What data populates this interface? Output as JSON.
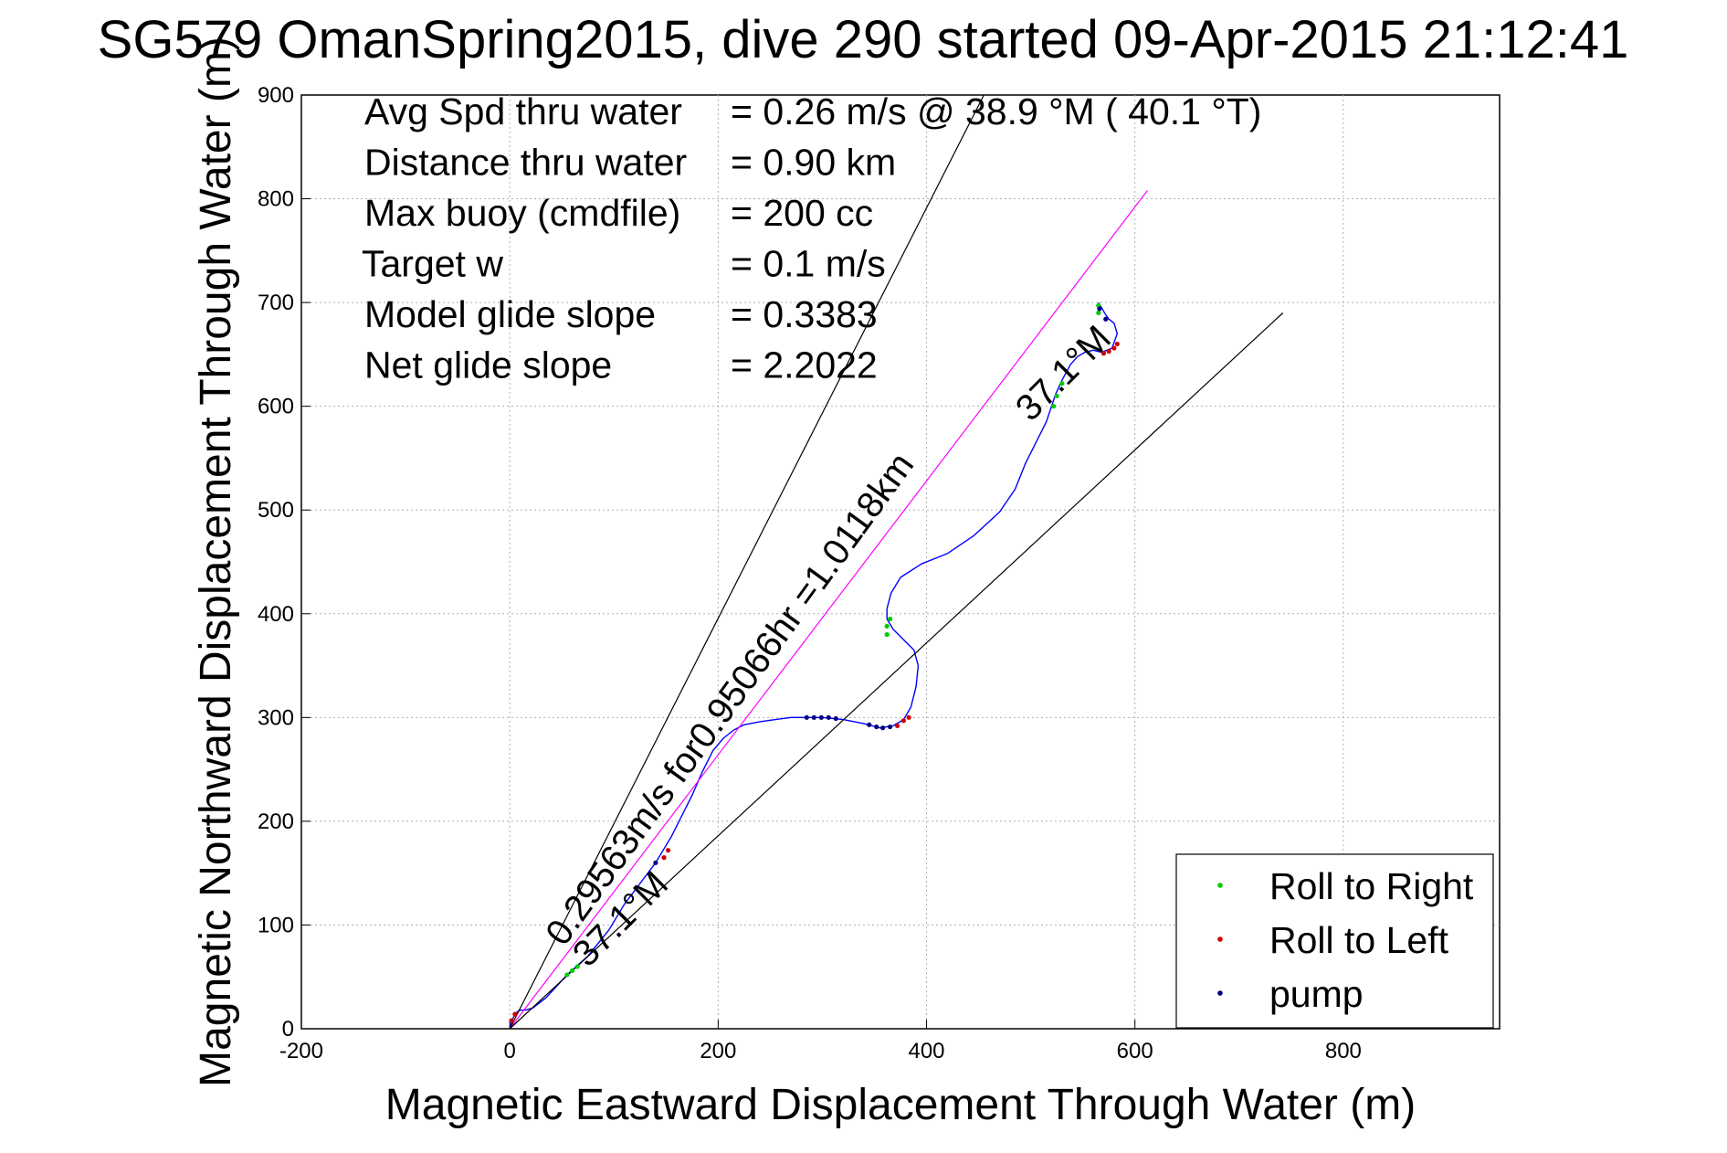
{
  "chart_data": {
    "type": "line",
    "title": "SG579 OmanSpring2015, dive 290 started 09-Apr-2015 21:12:41",
    "xlabel": "Magnetic Eastward Displacement Through Water (m)",
    "ylabel": "Magnetic Northward Displacement Through Water (m)",
    "xlim": [
      -200,
      950
    ],
    "ylim": [
      0,
      900
    ],
    "xticks": [
      -200,
      0,
      200,
      400,
      600,
      800
    ],
    "yticks": [
      0,
      100,
      200,
      300,
      400,
      500,
      600,
      700,
      800,
      900
    ],
    "grid": true,
    "legend_position": "bottom-right",
    "legend": [
      {
        "label": "Roll to Right",
        "color": "#00cc00"
      },
      {
        "label": "Roll to Left",
        "color": "#cc0000"
      },
      {
        "label": "pump",
        "color": "#000080"
      }
    ],
    "stats": [
      {
        "label": "Avg Spd thru water",
        "value": "=  0.26 m/s @   38.9 °M ( 40.1 °T)"
      },
      {
        "label": "Distance thru water",
        "value": "=  0.90 km"
      },
      {
        "label": "Max buoy (cmdfile)",
        "value": "= 200 cc"
      },
      {
        "label": "Target w",
        "value": "= 0.1 m/s"
      },
      {
        "label": "Model glide slope",
        "value": "= 0.3383"
      },
      {
        "label": "Net glide slope",
        "value": "= 2.2022"
      }
    ],
    "annotations": [
      {
        "text": "0.29563m/s for0.95066hr =1.0118km",
        "x": 52,
        "y": 78,
        "angle_deg": 54
      },
      {
        "text": "37.1°M",
        "x": 75,
        "y": 58,
        "angle_deg": 45
      },
      {
        "text": "37.1°M",
        "x": 500,
        "y": 584,
        "angle_deg": 45
      }
    ],
    "series": [
      {
        "name": "track",
        "color": "#0000ff",
        "x": [
          0,
          2,
          5,
          8,
          10,
          15,
          22,
          35,
          55,
          75,
          95,
          110,
          125,
          140,
          155,
          165,
          175,
          185,
          195,
          205,
          215,
          225,
          240,
          255,
          270,
          285,
          300,
          320,
          340,
          355,
          368,
          378,
          385,
          390,
          392,
          388,
          378,
          368,
          362,
          362,
          366,
          375,
          395,
          420,
          445,
          470,
          485,
          495,
          505,
          515,
          520,
          524,
          530,
          538,
          545,
          552,
          560,
          568,
          578,
          583,
          580,
          575,
          572,
          568,
          565
        ],
        "y": [
          0,
          8,
          14,
          17,
          18,
          18,
          20,
          30,
          52,
          70,
          95,
          120,
          140,
          160,
          185,
          205,
          225,
          248,
          268,
          280,
          288,
          293,
          296,
          298,
          300,
          300,
          300,
          298,
          294,
          290,
          292,
          298,
          310,
          330,
          350,
          365,
          375,
          385,
          395,
          405,
          420,
          435,
          448,
          458,
          475,
          498,
          520,
          545,
          565,
          585,
          600,
          612,
          625,
          640,
          648,
          652,
          654,
          652,
          656,
          670,
          680,
          684,
          688,
          695,
          700
        ]
      },
      {
        "name": "track-ref",
        "color": "#ff00ff",
        "x": [
          0,
          612
        ],
        "y": [
          0,
          808
        ]
      },
      {
        "name": "envelope-1",
        "color": "#000000",
        "x": [
          0,
          455
        ],
        "y": [
          0,
          900
        ]
      },
      {
        "name": "envelope-2",
        "color": "#000000",
        "x": [
          0,
          742
        ],
        "y": [
          0,
          690
        ]
      }
    ],
    "markers": {
      "roll_right": {
        "color": "#00cc00",
        "points": [
          [
            55,
            52
          ],
          [
            60,
            56
          ],
          [
            65,
            60
          ],
          [
            362,
            380
          ],
          [
            362,
            388
          ],
          [
            365,
            395
          ],
          [
            522,
            600
          ],
          [
            525,
            610
          ],
          [
            530,
            622
          ],
          [
            565,
            690
          ],
          [
            565,
            697
          ]
        ]
      },
      "roll_left": {
        "color": "#cc0000",
        "points": [
          [
            2,
            8
          ],
          [
            5,
            14
          ],
          [
            148,
            165
          ],
          [
            152,
            172
          ],
          [
            372,
            292
          ],
          [
            378,
            297
          ],
          [
            383,
            300
          ],
          [
            570,
            651
          ],
          [
            575,
            653
          ],
          [
            580,
            656
          ],
          [
            583,
            660
          ]
        ]
      },
      "pump": {
        "color": "#000080",
        "points": [
          [
            140,
            160
          ],
          [
            285,
            300
          ],
          [
            292,
            300
          ],
          [
            299,
            300
          ],
          [
            306,
            300
          ],
          [
            313,
            299
          ],
          [
            345,
            293
          ],
          [
            352,
            291
          ],
          [
            358,
            290
          ],
          [
            365,
            291
          ],
          [
            572,
            684
          ],
          [
            566,
            694
          ]
        ]
      }
    }
  }
}
